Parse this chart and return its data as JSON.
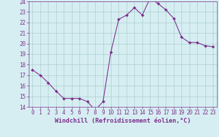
{
  "x": [
    0,
    1,
    2,
    3,
    4,
    5,
    6,
    7,
    8,
    9,
    10,
    11,
    12,
    13,
    14,
    15,
    16,
    17,
    18,
    19,
    20,
    21,
    22,
    23
  ],
  "y": [
    17.5,
    17.0,
    16.3,
    15.5,
    14.8,
    14.8,
    14.8,
    14.5,
    13.7,
    14.5,
    19.2,
    22.3,
    22.7,
    23.4,
    22.7,
    24.3,
    23.8,
    23.2,
    22.4,
    20.6,
    20.1,
    20.1,
    19.8,
    19.7
  ],
  "line_color": "#7b2d8b",
  "marker_color": "#7b2d8b",
  "bg_color": "#d6eef2",
  "grid_color": "#aacccc",
  "xlabel": "Windchill (Refroidissement éolien,°C)",
  "xlabel_color": "#7b2d8b",
  "tick_color": "#7b2d8b",
  "ylim": [
    14,
    24
  ],
  "yticks": [
    14,
    15,
    16,
    17,
    18,
    19,
    20,
    21,
    22,
    23,
    24
  ],
  "xlim": [
    -0.5,
    23.5
  ],
  "xticks": [
    0,
    1,
    2,
    3,
    4,
    5,
    6,
    7,
    8,
    9,
    10,
    11,
    12,
    13,
    14,
    15,
    16,
    17,
    18,
    19,
    20,
    21,
    22,
    23
  ],
  "label_fontsize": 6.5,
  "tick_fontsize": 5.5
}
